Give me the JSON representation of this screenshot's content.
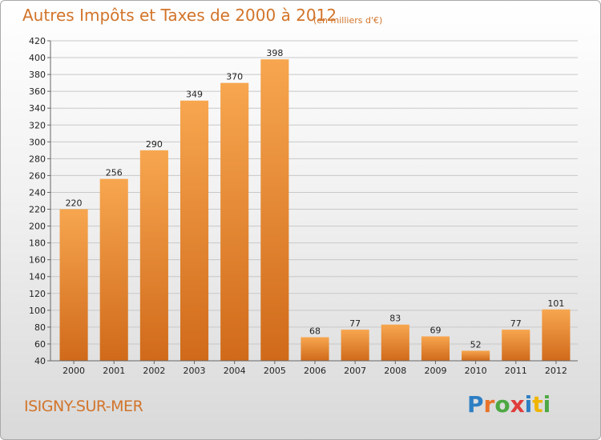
{
  "header": {
    "title": "Autres Impôts et Taxes de 2000 à 2012",
    "unit": "(en milliers d'€)"
  },
  "footer": {
    "place": "ISIGNY-SUR-MER",
    "brand": {
      "parts": [
        "P",
        "r",
        "o",
        "x",
        "i",
        "t",
        "i"
      ],
      "colors": [
        "#2d7fc4",
        "#e8732a",
        "#4da843",
        "#e03c3c",
        "#2d7fc4",
        "#f0b500",
        "#4da843"
      ]
    }
  },
  "chart_data": {
    "type": "bar",
    "title": "Autres Impôts et Taxes de 2000 à 2012",
    "subtitle": "(en milliers d'€)",
    "categories": [
      "2000",
      "2001",
      "2002",
      "2003",
      "2004",
      "2005",
      "2006",
      "2007",
      "2008",
      "2009",
      "2010",
      "2011",
      "2012"
    ],
    "values": [
      220,
      256,
      290,
      349,
      370,
      398,
      68,
      77,
      83,
      69,
      52,
      77,
      101
    ],
    "ylim": [
      40,
      420
    ],
    "ytick_step": 20,
    "grid": true,
    "colors": {
      "bar_top": "#f7a64f",
      "bar_bottom": "#d06a1a"
    }
  }
}
